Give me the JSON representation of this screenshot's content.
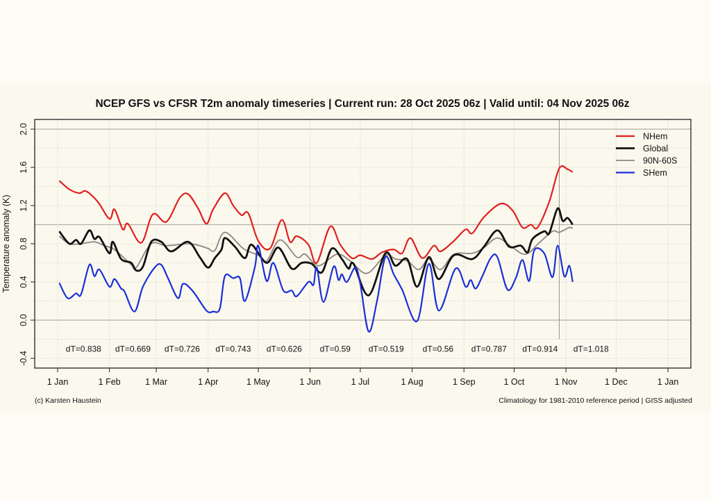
{
  "chart_data": {
    "type": "line",
    "title": "NCEP GFS vs CFSR T2m anomaly timeseries | Current run: 28 Oct 2025 06z | Valid until: 04 Nov 2025 06z",
    "ylabel": "Temperature anomaly (K)",
    "xlabel": "",
    "ylim": [
      -0.5,
      2.1
    ],
    "xlim": [
      "2025-01-01",
      "2026-01-01"
    ],
    "yticks": [
      "-0.4",
      "0.0",
      "0.4",
      "0.8",
      "1.2",
      "1.6",
      "2.0"
    ],
    "xticks": [
      {
        "date": "2025-01-01",
        "label": "1 Jan"
      },
      {
        "date": "2025-02-01",
        "label": "1 Feb"
      },
      {
        "date": "2025-03-01",
        "label": "1 Mar"
      },
      {
        "date": "2025-04-01",
        "label": "1 Apr"
      },
      {
        "date": "2025-05-01",
        "label": "1 May"
      },
      {
        "date": "2025-06-01",
        "label": "1 Jun"
      },
      {
        "date": "2025-07-01",
        "label": "1 Jul"
      },
      {
        "date": "2025-08-01",
        "label": "1 Aug"
      },
      {
        "date": "2025-09-01",
        "label": "1 Sep"
      },
      {
        "date": "2025-10-01",
        "label": "1 Oct"
      },
      {
        "date": "2025-11-01",
        "label": "1 Nov"
      },
      {
        "date": "2025-12-01",
        "label": "1 Dec"
      },
      {
        "date": "2026-01-01",
        "label": "1 Jan"
      }
    ],
    "grid": true,
    "current_run_marker": "2025-10-28",
    "legend_position": "top-right",
    "monthly_dT": [
      {
        "month": "2025-01",
        "label": "dT=0.838"
      },
      {
        "month": "2025-02",
        "label": "dT=0.669"
      },
      {
        "month": "2025-03",
        "label": "dT=0.726"
      },
      {
        "month": "2025-04",
        "label": "dT=0.743"
      },
      {
        "month": "2025-05",
        "label": "dT=0.626"
      },
      {
        "month": "2025-06",
        "label": "dT=0.59"
      },
      {
        "month": "2025-07",
        "label": "dT=0.519"
      },
      {
        "month": "2025-08",
        "label": "dT=0.56"
      },
      {
        "month": "2025-09",
        "label": "dT=0.787"
      },
      {
        "month": "2025-10",
        "label": "dT=0.914"
      },
      {
        "month": "2025-11",
        "label": "dT=1.018"
      }
    ],
    "series": [
      {
        "name": "NHem",
        "color": "#e0201e",
        "width": 2.2,
        "points": [
          [
            "01-02",
            1.46
          ],
          [
            "01-08",
            1.37
          ],
          [
            "01-14",
            1.33
          ],
          [
            "01-18",
            1.35
          ],
          [
            "01-25",
            1.24
          ],
          [
            "02-01",
            1.06
          ],
          [
            "02-04",
            1.16
          ],
          [
            "02-09",
            0.95
          ],
          [
            "02-12",
            1.01
          ],
          [
            "02-20",
            0.81
          ],
          [
            "02-27",
            1.11
          ],
          [
            "03-07",
            1.03
          ],
          [
            "03-15",
            1.28
          ],
          [
            "03-20",
            1.32
          ],
          [
            "03-26",
            1.17
          ],
          [
            "03-31",
            1.01
          ],
          [
            "04-04",
            1.16
          ],
          [
            "04-11",
            1.33
          ],
          [
            "04-16",
            1.2
          ],
          [
            "04-21",
            1.1
          ],
          [
            "04-25",
            1.12
          ],
          [
            "05-01",
            0.83
          ],
          [
            "05-08",
            0.75
          ],
          [
            "05-15",
            1.05
          ],
          [
            "05-20",
            0.82
          ],
          [
            "05-24",
            0.88
          ],
          [
            "05-31",
            0.79
          ],
          [
            "06-05",
            0.6
          ],
          [
            "06-13",
            0.98
          ],
          [
            "06-19",
            0.79
          ],
          [
            "06-26",
            0.65
          ],
          [
            "07-01",
            0.68
          ],
          [
            "07-08",
            0.64
          ],
          [
            "07-14",
            0.71
          ],
          [
            "07-21",
            0.74
          ],
          [
            "07-26",
            0.7
          ],
          [
            "07-31",
            0.86
          ],
          [
            "08-07",
            0.65
          ],
          [
            "08-14",
            0.78
          ],
          [
            "08-18",
            0.72
          ],
          [
            "08-26",
            0.83
          ],
          [
            "09-02",
            0.95
          ],
          [
            "09-06",
            0.91
          ],
          [
            "09-13",
            1.08
          ],
          [
            "09-23",
            1.22
          ],
          [
            "09-30",
            1.15
          ],
          [
            "10-06",
            0.97
          ],
          [
            "10-11",
            1.0
          ],
          [
            "10-15",
            0.97
          ],
          [
            "10-22",
            1.24
          ],
          [
            "10-28",
            1.59
          ],
          [
            "11-02",
            1.58
          ],
          [
            "11-05",
            1.55
          ]
        ]
      },
      {
        "name": "Global",
        "color": "#111111",
        "width": 2.8,
        "points": [
          [
            "01-02",
            0.93
          ],
          [
            "01-08",
            0.8
          ],
          [
            "01-12",
            0.84
          ],
          [
            "01-15",
            0.8
          ],
          [
            "01-20",
            0.94
          ],
          [
            "01-23",
            0.85
          ],
          [
            "01-26",
            0.87
          ],
          [
            "02-01",
            0.7
          ],
          [
            "02-03",
            0.82
          ],
          [
            "02-08",
            0.64
          ],
          [
            "02-14",
            0.6
          ],
          [
            "02-17",
            0.52
          ],
          [
            "02-21",
            0.56
          ],
          [
            "02-26",
            0.82
          ],
          [
            "03-04",
            0.82
          ],
          [
            "03-10",
            0.72
          ],
          [
            "03-20",
            0.82
          ],
          [
            "03-27",
            0.66
          ],
          [
            "04-01",
            0.55
          ],
          [
            "04-05",
            0.65
          ],
          [
            "04-09",
            0.74
          ],
          [
            "04-11",
            0.86
          ],
          [
            "04-17",
            0.77
          ],
          [
            "04-23",
            0.65
          ],
          [
            "04-27",
            0.79
          ],
          [
            "05-06",
            0.6
          ],
          [
            "05-13",
            0.76
          ],
          [
            "05-21",
            0.54
          ],
          [
            "05-27",
            0.6
          ],
          [
            "06-02",
            0.59
          ],
          [
            "06-08",
            0.5
          ],
          [
            "06-14",
            0.75
          ],
          [
            "06-20",
            0.64
          ],
          [
            "06-24",
            0.54
          ],
          [
            "06-27",
            0.59
          ],
          [
            "07-06",
            0.26
          ],
          [
            "07-16",
            0.7
          ],
          [
            "07-22",
            0.57
          ],
          [
            "07-29",
            0.64
          ],
          [
            "08-04",
            0.35
          ],
          [
            "08-11",
            0.66
          ],
          [
            "08-17",
            0.43
          ],
          [
            "08-26",
            0.68
          ],
          [
            "09-06",
            0.64
          ],
          [
            "09-13",
            0.77
          ],
          [
            "09-21",
            0.94
          ],
          [
            "09-28",
            0.77
          ],
          [
            "10-05",
            0.78
          ],
          [
            "10-09",
            0.71
          ],
          [
            "10-12",
            0.85
          ],
          [
            "10-19",
            0.93
          ],
          [
            "10-22",
            0.91
          ],
          [
            "10-27",
            1.17
          ],
          [
            "10-30",
            1.04
          ],
          [
            "11-02",
            1.07
          ],
          [
            "11-05",
            1.0
          ]
        ]
      },
      {
        "name": "90N-60S",
        "color": "#8c8580",
        "width": 1.8,
        "points": [
          [
            "01-02",
            0.88
          ],
          [
            "01-08",
            0.8
          ],
          [
            "01-15",
            0.8
          ],
          [
            "01-23",
            0.82
          ],
          [
            "01-29",
            0.78
          ],
          [
            "02-03",
            0.75
          ],
          [
            "02-08",
            0.68
          ],
          [
            "02-14",
            0.58
          ],
          [
            "02-17",
            0.55
          ],
          [
            "02-26",
            0.8
          ],
          [
            "03-07",
            0.78
          ],
          [
            "03-20",
            0.8
          ],
          [
            "03-27",
            0.78
          ],
          [
            "04-01",
            0.75
          ],
          [
            "04-05",
            0.73
          ],
          [
            "04-11",
            0.92
          ],
          [
            "04-22",
            0.75
          ],
          [
            "05-01",
            0.68
          ],
          [
            "05-06",
            0.62
          ],
          [
            "05-14",
            0.84
          ],
          [
            "05-24",
            0.66
          ],
          [
            "05-29",
            0.69
          ],
          [
            "06-06",
            0.57
          ],
          [
            "06-17",
            0.69
          ],
          [
            "06-25",
            0.62
          ],
          [
            "07-05",
            0.49
          ],
          [
            "07-16",
            0.68
          ],
          [
            "07-22",
            0.64
          ],
          [
            "07-29",
            0.62
          ],
          [
            "08-05",
            0.53
          ],
          [
            "08-11",
            0.64
          ],
          [
            "08-18",
            0.53
          ],
          [
            "08-26",
            0.69
          ],
          [
            "09-06",
            0.7
          ],
          [
            "09-13",
            0.76
          ],
          [
            "09-21",
            0.86
          ],
          [
            "09-30",
            0.76
          ],
          [
            "10-08",
            0.69
          ],
          [
            "10-16",
            0.81
          ],
          [
            "10-24",
            0.93
          ],
          [
            "10-28",
            0.92
          ],
          [
            "11-03",
            0.97
          ],
          [
            "11-05",
            0.96
          ]
        ]
      },
      {
        "name": "SHem",
        "color": "#1a2fd8",
        "width": 2.2,
        "points": [
          [
            "01-02",
            0.39
          ],
          [
            "01-07",
            0.23
          ],
          [
            "01-12",
            0.28
          ],
          [
            "01-15",
            0.27
          ],
          [
            "01-20",
            0.58
          ],
          [
            "01-23",
            0.46
          ],
          [
            "01-26",
            0.53
          ],
          [
            "02-01",
            0.35
          ],
          [
            "02-04",
            0.43
          ],
          [
            "02-08",
            0.33
          ],
          [
            "02-10",
            0.3
          ],
          [
            "02-16",
            0.09
          ],
          [
            "02-21",
            0.35
          ],
          [
            "02-28",
            0.55
          ],
          [
            "03-04",
            0.58
          ],
          [
            "03-08",
            0.44
          ],
          [
            "03-14",
            0.23
          ],
          [
            "03-17",
            0.38
          ],
          [
            "03-23",
            0.3
          ],
          [
            "03-31",
            0.1
          ],
          [
            "04-04",
            0.09
          ],
          [
            "04-08",
            0.12
          ],
          [
            "04-11",
            0.46
          ],
          [
            "04-16",
            0.44
          ],
          [
            "04-20",
            0.44
          ],
          [
            "04-23",
            0.2
          ],
          [
            "04-29",
            0.56
          ],
          [
            "05-01",
            0.78
          ],
          [
            "05-06",
            0.41
          ],
          [
            "05-10",
            0.6
          ],
          [
            "05-16",
            0.31
          ],
          [
            "05-21",
            0.31
          ],
          [
            "05-24",
            0.25
          ],
          [
            "05-31",
            0.4
          ],
          [
            "06-03",
            0.37
          ],
          [
            "06-05",
            0.55
          ],
          [
            "06-09",
            0.19
          ],
          [
            "06-15",
            0.56
          ],
          [
            "06-18",
            0.42
          ],
          [
            "06-20",
            0.48
          ],
          [
            "06-23",
            0.4
          ],
          [
            "06-28",
            0.55
          ],
          [
            "07-01",
            0.38
          ],
          [
            "07-06",
            -0.12
          ],
          [
            "07-11",
            0.2
          ],
          [
            "07-16",
            0.66
          ],
          [
            "07-21",
            0.48
          ],
          [
            "07-26",
            0.32
          ],
          [
            "08-04",
            -0.01
          ],
          [
            "08-11",
            0.59
          ],
          [
            "08-17",
            0.1
          ],
          [
            "08-27",
            0.54
          ],
          [
            "09-02",
            0.35
          ],
          [
            "09-05",
            0.42
          ],
          [
            "09-08",
            0.33
          ],
          [
            "09-12",
            0.46
          ],
          [
            "09-17",
            0.65
          ],
          [
            "09-21",
            0.66
          ],
          [
            "09-27",
            0.32
          ],
          [
            "10-02",
            0.44
          ],
          [
            "10-06",
            0.63
          ],
          [
            "10-10",
            0.41
          ],
          [
            "10-13",
            0.73
          ],
          [
            "10-19",
            0.7
          ],
          [
            "10-24",
            0.45
          ],
          [
            "10-27",
            0.78
          ],
          [
            "10-31",
            0.46
          ],
          [
            "11-03",
            0.57
          ],
          [
            "11-05",
            0.4
          ]
        ]
      }
    ]
  },
  "footer": {
    "credit": "(c) Karsten Haustein",
    "note": "Climatology for 1981-2010 reference period | GISS adjusted"
  }
}
